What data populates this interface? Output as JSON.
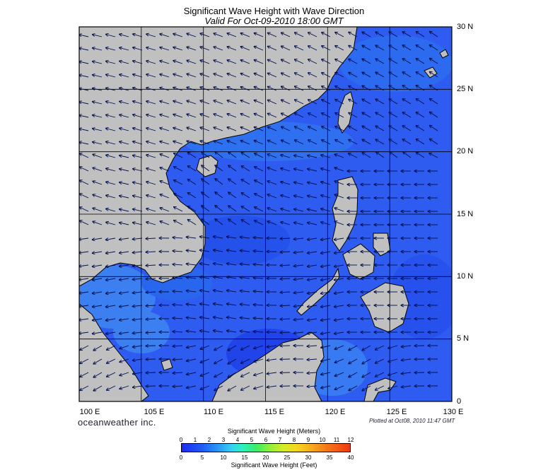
{
  "header": {
    "title": "Significant Wave Height with Wave Direction",
    "subtitle": "Valid For Oct-09-2010 18:00 GMT"
  },
  "map": {
    "lon_range": [
      100,
      130
    ],
    "lat_range": [
      0,
      30
    ],
    "lat_labels": [
      "30 N",
      "25 N",
      "20 N",
      "15 N",
      "10 N",
      "5 N",
      "0"
    ],
    "lon_labels": [
      "100 E",
      "105 E",
      "110 E",
      "115 E",
      "120 E",
      "125 E",
      "130 E"
    ],
    "grid": true,
    "land_color": "#c0c0c0",
    "ocean_color": "#2f5cf0",
    "predominant_wave_direction": "toward west / southwest"
  },
  "footer": {
    "brand": "oceanweather inc.",
    "plotted": "Plotted at Oct08, 2010 11:47 GMT"
  },
  "colorbar": {
    "title_meters": "Significant Wave Height (Meters)",
    "title_feet": "Significant Wave Height (Feet)",
    "meters_ticks": [
      "0",
      "1",
      "2",
      "3",
      "4",
      "5",
      "6",
      "7",
      "8",
      "9",
      "10",
      "11",
      "12"
    ],
    "feet_ticks": [
      "0",
      "5",
      "10",
      "15",
      "20",
      "25",
      "30",
      "35",
      "40"
    ],
    "range_meters": [
      0,
      12
    ],
    "range_feet": [
      0,
      40
    ]
  }
}
